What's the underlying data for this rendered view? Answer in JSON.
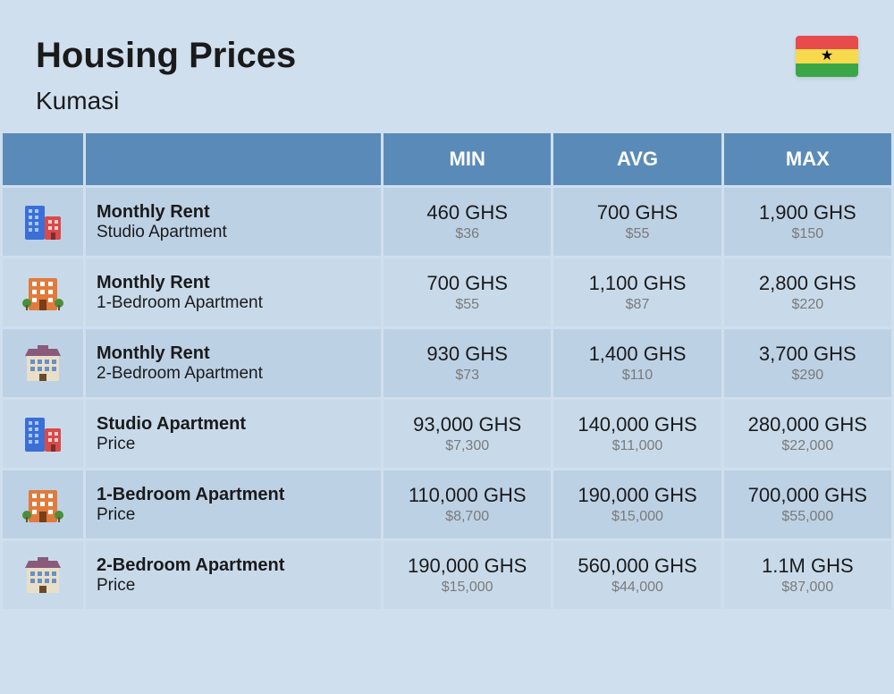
{
  "header": {
    "title": "Housing Prices",
    "subtitle": "Kumasi"
  },
  "flag": {
    "top_color": "#e84b4b",
    "mid_color": "#f6d94c",
    "bot_color": "#3aa646",
    "star_color": "#000000"
  },
  "colors": {
    "page_bg": "#cfdfee",
    "header_bg": "#5a8bb8",
    "header_text": "#ffffff",
    "row_even_bg": "#bdd1e5",
    "row_odd_bg": "#c8daea",
    "text_primary": "#1a1a1a",
    "text_secondary": "#7a7a7a"
  },
  "table": {
    "columns": [
      "",
      "",
      "MIN",
      "AVG",
      "MAX"
    ],
    "rows": [
      {
        "icon": "studio",
        "label_top": "Monthly Rent",
        "label_bottom": "Studio Apartment",
        "min_ghs": "460 GHS",
        "min_usd": "$36",
        "avg_ghs": "700 GHS",
        "avg_usd": "$55",
        "max_ghs": "1,900 GHS",
        "max_usd": "$150"
      },
      {
        "icon": "onebed",
        "label_top": "Monthly Rent",
        "label_bottom": "1-Bedroom Apartment",
        "min_ghs": "700 GHS",
        "min_usd": "$55",
        "avg_ghs": "1,100 GHS",
        "avg_usd": "$87",
        "max_ghs": "2,800 GHS",
        "max_usd": "$220"
      },
      {
        "icon": "twobed",
        "label_top": "Monthly Rent",
        "label_bottom": "2-Bedroom Apartment",
        "min_ghs": "930 GHS",
        "min_usd": "$73",
        "avg_ghs": "1,400 GHS",
        "avg_usd": "$110",
        "max_ghs": "3,700 GHS",
        "max_usd": "$290"
      },
      {
        "icon": "studio",
        "label_top": "Studio Apartment",
        "label_bottom": "Price",
        "min_ghs": "93,000 GHS",
        "min_usd": "$7,300",
        "avg_ghs": "140,000 GHS",
        "avg_usd": "$11,000",
        "max_ghs": "280,000 GHS",
        "max_usd": "$22,000"
      },
      {
        "icon": "onebed",
        "label_top": "1-Bedroom Apartment",
        "label_bottom": "Price",
        "min_ghs": "110,000 GHS",
        "min_usd": "$8,700",
        "avg_ghs": "190,000 GHS",
        "avg_usd": "$15,000",
        "max_ghs": "700,000 GHS",
        "max_usd": "$55,000"
      },
      {
        "icon": "twobed",
        "label_top": "2-Bedroom Apartment",
        "label_bottom": "Price",
        "min_ghs": "190,000 GHS",
        "min_usd": "$15,000",
        "avg_ghs": "560,000 GHS",
        "avg_usd": "$44,000",
        "max_ghs": "1.1M GHS",
        "max_usd": "$87,000"
      }
    ]
  }
}
